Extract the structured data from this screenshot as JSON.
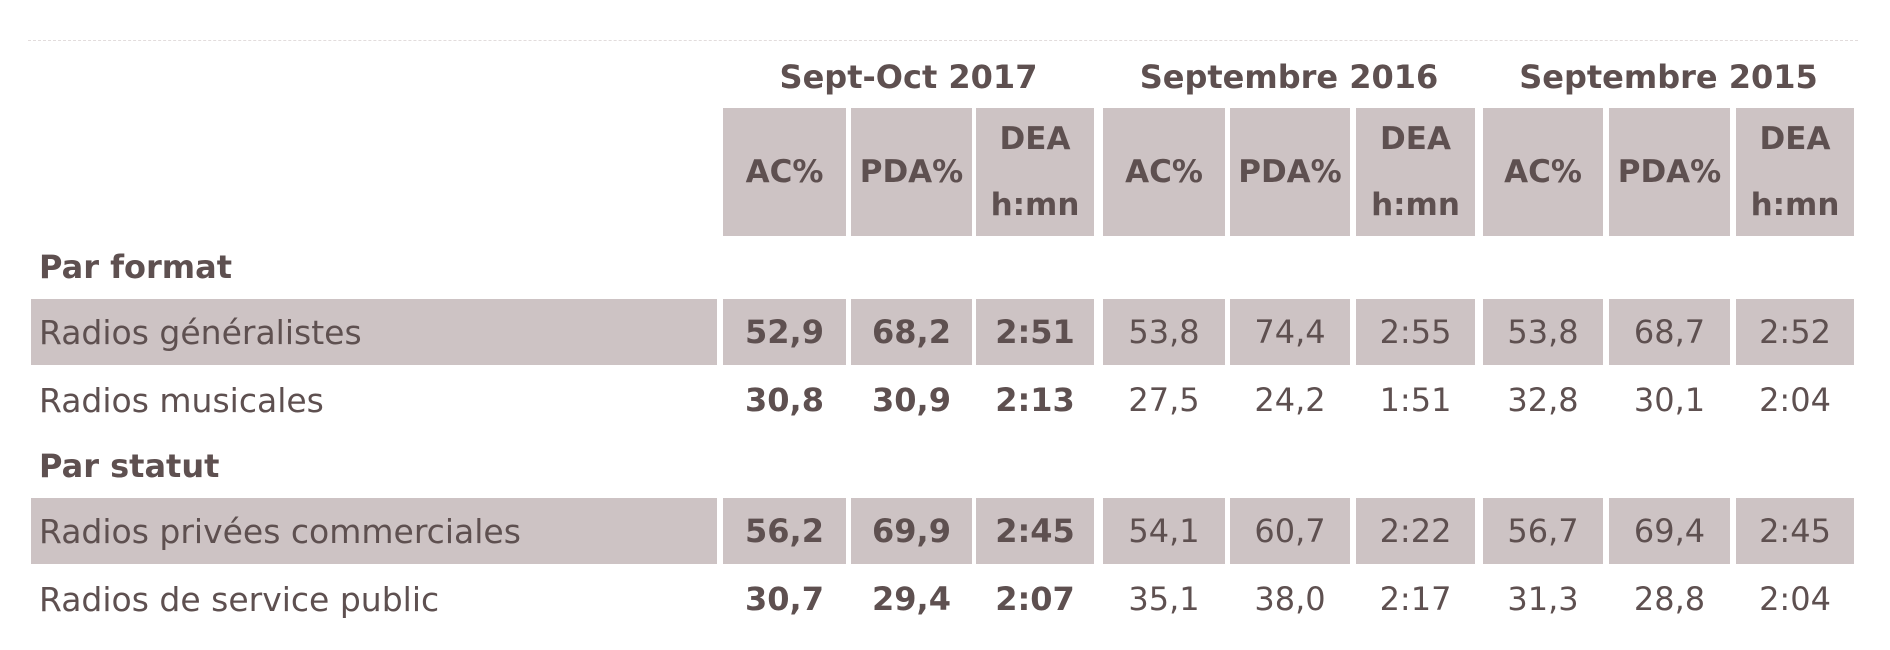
{
  "table": {
    "groups": [
      "Sept-Oct 2017",
      "Septembre 2016",
      "Septembre 2015"
    ],
    "column_headers": [
      "AC%",
      "PDA%",
      "DEA h:mn",
      "AC%",
      "PDA%",
      "DEA h:mn",
      "AC%",
      "PDA%",
      "DEA h:mn"
    ],
    "sections": [
      {
        "title": "Par format",
        "rows": [
          {
            "label": "Radios généralistes",
            "values": [
              "52,9",
              "68,2",
              "2:51",
              "53,8",
              "74,4",
              "2:55",
              "53,8",
              "68,7",
              "2:52"
            ]
          },
          {
            "label": "Radios musicales",
            "values": [
              "30,8",
              "30,9",
              "2:13",
              "27,5",
              "24,2",
              "1:51",
              "32,8",
              "30,1",
              "2:04"
            ]
          }
        ]
      },
      {
        "title": "Par statut",
        "rows": [
          {
            "label": "Radios privées commerciales",
            "values": [
              "56,2",
              "69,9",
              "2:45",
              "54,1",
              "60,7",
              "2:22",
              "56,7",
              "69,4",
              "2:45"
            ]
          },
          {
            "label": "Radios de service public",
            "values": [
              "30,7",
              "29,4",
              "2:07",
              "35,1",
              "38,0",
              "2:17",
              "31,3",
              "28,8",
              "2:04"
            ]
          }
        ]
      }
    ]
  }
}
